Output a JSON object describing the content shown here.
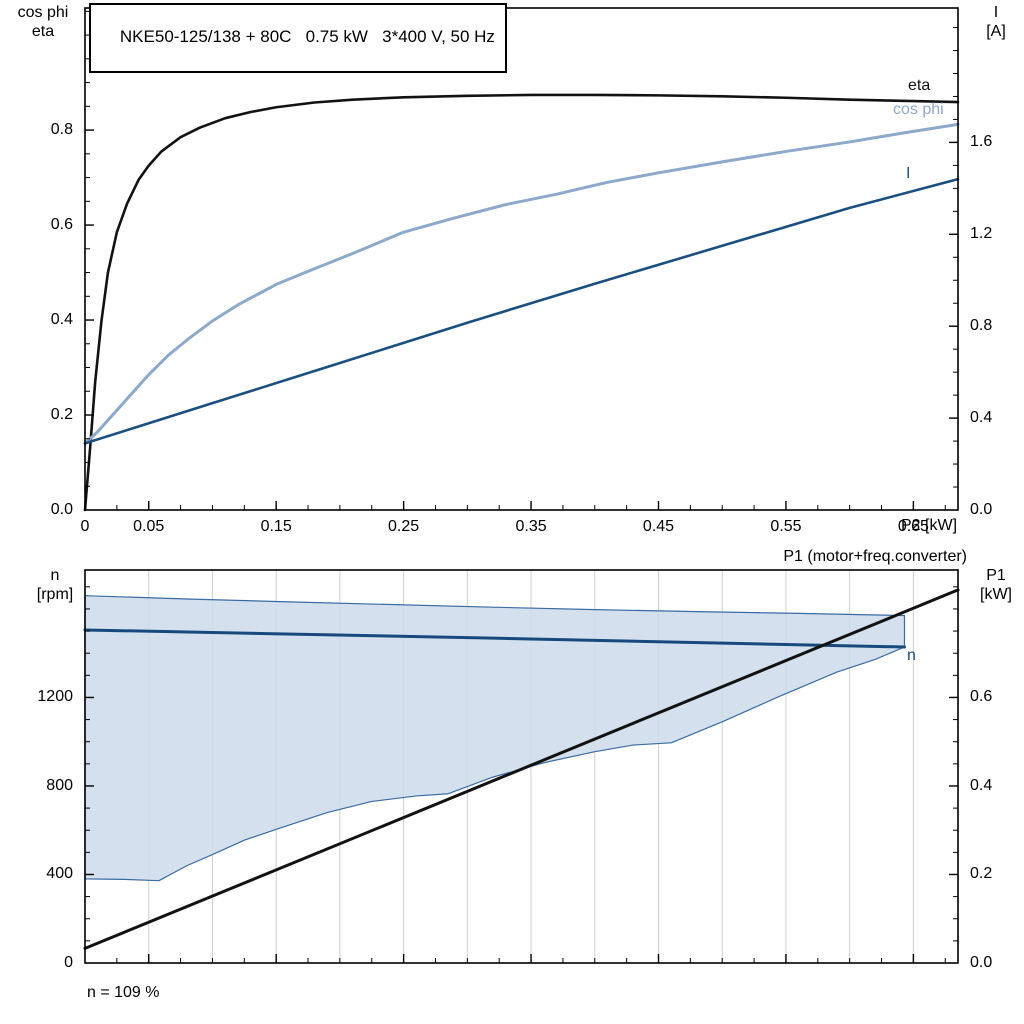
{
  "chart_data": [
    {
      "type": "line",
      "title": "NKE50-125/138 + 80C   0.75 kW   3*400 V, 50 Hz",
      "x_axis": {
        "label": "P2 [kW]",
        "range": [
          0,
          0.685
        ],
        "ticks": [
          0,
          0.05,
          0.15,
          0.25,
          0.35,
          0.45,
          0.55,
          0.65
        ],
        "tick_labels": [
          "0",
          "0.05",
          "0.15",
          "0.25",
          "0.35",
          "0.45",
          "0.55",
          "0.65"
        ],
        "minor_step": 0.025,
        "show_labels": true
      },
      "left_axis": {
        "label_line1": "cos phi",
        "label_line2": "eta",
        "range": [
          0,
          1.057
        ],
        "ticks": [
          0.2,
          0.4,
          0.6,
          0.8
        ],
        "tick_labels_values": [
          0.0,
          0.2,
          0.4,
          0.6,
          0.8
        ],
        "tick_labels": [
          "0.0",
          "0.2",
          "0.4",
          "0.6",
          "0.8"
        ],
        "minor_step": 0.05
      },
      "right_axis": {
        "label_line1": "I",
        "label_line2": "[A]",
        "range": [
          0,
          2.185
        ],
        "ticks": [
          0.4,
          0.8,
          1.2,
          1.6
        ],
        "tick_labels_values": [
          0.0,
          0.4,
          0.8,
          1.2,
          1.6
        ],
        "tick_labels": [
          "0.0",
          "0.4",
          "0.8",
          "1.2",
          "1.6"
        ],
        "minor_step": 0.1
      },
      "grid": false,
      "series": [
        {
          "name": "eta",
          "axis": "left",
          "color": "#121212",
          "width": 2.6,
          "points": [
            [
              0,
              0
            ],
            [
              0.004,
              0.13
            ],
            [
              0.008,
              0.27
            ],
            [
              0.013,
              0.4
            ],
            [
              0.018,
              0.5
            ],
            [
              0.025,
              0.585
            ],
            [
              0.033,
              0.645
            ],
            [
              0.042,
              0.695
            ],
            [
              0.05,
              0.725
            ],
            [
              0.06,
              0.755
            ],
            [
              0.075,
              0.785
            ],
            [
              0.09,
              0.805
            ],
            [
              0.11,
              0.825
            ],
            [
              0.13,
              0.838
            ],
            [
              0.15,
              0.848
            ],
            [
              0.18,
              0.858
            ],
            [
              0.21,
              0.864
            ],
            [
              0.25,
              0.869
            ],
            [
              0.3,
              0.872
            ],
            [
              0.35,
              0.874
            ],
            [
              0.4,
              0.874
            ],
            [
              0.45,
              0.873
            ],
            [
              0.5,
              0.871
            ],
            [
              0.55,
              0.868
            ],
            [
              0.6,
              0.864
            ],
            [
              0.65,
              0.861
            ],
            [
              0.685,
              0.859
            ]
          ]
        },
        {
          "name": "cos phi",
          "axis": "left",
          "color": "#8CA8CB",
          "width": 3,
          "points": [
            [
              0,
              0.14
            ],
            [
              0.01,
              0.165
            ],
            [
              0.02,
              0.195
            ],
            [
              0.03,
              0.225
            ],
            [
              0.04,
              0.255
            ],
            [
              0.05,
              0.285
            ],
            [
              0.065,
              0.325
            ],
            [
              0.08,
              0.358
            ],
            [
              0.1,
              0.398
            ],
            [
              0.12,
              0.432
            ],
            [
              0.15,
              0.475
            ],
            [
              0.18,
              0.508
            ],
            [
              0.21,
              0.54
            ],
            [
              0.25,
              0.585
            ],
            [
              0.29,
              0.615
            ],
            [
              0.33,
              0.643
            ],
            [
              0.37,
              0.665
            ],
            [
              0.41,
              0.69
            ],
            [
              0.45,
              0.71
            ],
            [
              0.5,
              0.733
            ],
            [
              0.55,
              0.755
            ],
            [
              0.6,
              0.775
            ],
            [
              0.64,
              0.793
            ],
            [
              0.685,
              0.812
            ]
          ]
        },
        {
          "name": "I",
          "axis": "right",
          "color": "#1B4F80",
          "width": 2.6,
          "points": [
            [
              0,
              0.29
            ],
            [
              0.1,
              0.465
            ],
            [
              0.2,
              0.64
            ],
            [
              0.3,
              0.815
            ],
            [
              0.4,
              0.985
            ],
            [
              0.5,
              1.15
            ],
            [
              0.6,
              1.315
            ],
            [
              0.685,
              1.44
            ]
          ]
        }
      ]
    },
    {
      "type": "line",
      "top_right_label": "P1 (motor+freq.converter)",
      "annotation": "n = 109 %",
      "x_axis": {
        "label": "",
        "range": [
          0,
          0.685
        ],
        "ticks": [
          0.05,
          0.15,
          0.25,
          0.35,
          0.45,
          0.55,
          0.65
        ],
        "tick_labels": [],
        "minor_step": 0.025,
        "grid_step": 0.05,
        "show_labels": false
      },
      "left_axis": {
        "label_line1": "n",
        "label_line2": "[rpm]",
        "range": [
          0,
          1776
        ],
        "ticks": [
          400,
          800,
          1200
        ],
        "tick_labels_values": [
          0,
          400,
          800,
          1200
        ],
        "tick_labels": [
          "0",
          "400",
          "800",
          "1200"
        ],
        "minor_step": 100
      },
      "right_axis": {
        "label_line1": "P1",
        "label_line2": "[kW]",
        "range": [
          0,
          0.888
        ],
        "ticks": [
          0.2,
          0.4,
          0.6
        ],
        "tick_labels_values": [
          0.0,
          0.2,
          0.4,
          0.6
        ],
        "tick_labels": [
          "0.0",
          "0.2",
          "0.4",
          "0.6"
        ],
        "minor_step": 0.05
      },
      "grid": true,
      "band": {
        "name": "n-speed-range",
        "fill": "#CCDAEA",
        "stroke": "#3A6BA2",
        "upper": [
          [
            0,
            1660
          ],
          [
            0.08,
            1645
          ],
          [
            0.16,
            1632
          ],
          [
            0.24,
            1620
          ],
          [
            0.32,
            1608
          ],
          [
            0.4,
            1597
          ],
          [
            0.48,
            1588
          ],
          [
            0.56,
            1580
          ],
          [
            0.643,
            1570
          ]
        ],
        "lower": [
          [
            0,
            380
          ],
          [
            0.03,
            378
          ],
          [
            0.058,
            372
          ],
          [
            0.08,
            440
          ],
          [
            0.1,
            490
          ],
          [
            0.125,
            555
          ],
          [
            0.153,
            610
          ],
          [
            0.19,
            680
          ],
          [
            0.225,
            730
          ],
          [
            0.26,
            755
          ],
          [
            0.285,
            765
          ],
          [
            0.32,
            840
          ],
          [
            0.36,
            905
          ],
          [
            0.4,
            955
          ],
          [
            0.43,
            985
          ],
          [
            0.46,
            995
          ],
          [
            0.5,
            1090
          ],
          [
            0.545,
            1205
          ],
          [
            0.59,
            1315
          ],
          [
            0.62,
            1372
          ],
          [
            0.643,
            1428
          ]
        ]
      },
      "series": [
        {
          "name": "n",
          "axis": "left",
          "color": "#17497C",
          "width": 3,
          "points": [
            [
              0,
              1505
            ],
            [
              0.32,
              1468
            ],
            [
              0.643,
              1428
            ]
          ]
        },
        {
          "name": "P1",
          "axis": "right",
          "color": "#121212",
          "width": 3,
          "points": [
            [
              0,
              0.033
            ],
            [
              0.685,
              0.843
            ]
          ]
        }
      ]
    }
  ]
}
